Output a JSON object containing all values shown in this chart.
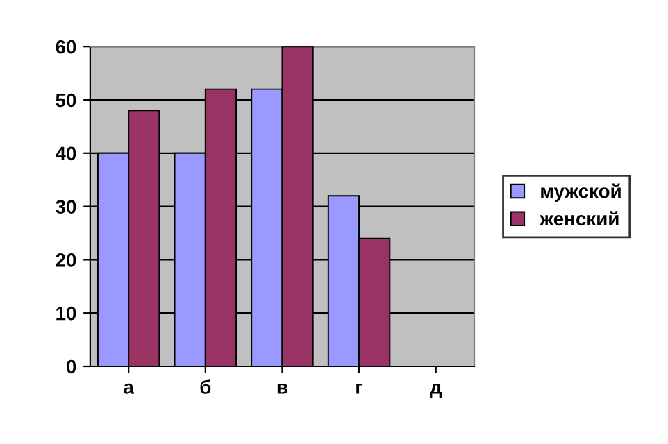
{
  "chart_data": {
    "type": "bar",
    "categories": [
      "а",
      "б",
      "в",
      "г",
      "д"
    ],
    "series": [
      {
        "name": "мужской",
        "color": "#9999ff",
        "values": [
          40,
          40,
          52,
          32,
          0
        ]
      },
      {
        "name": "женский",
        "color": "#993366",
        "values": [
          48,
          52,
          60,
          24,
          0
        ]
      }
    ],
    "ylim": [
      0,
      60
    ],
    "yticks": [
      0,
      10,
      20,
      30,
      40,
      50,
      60
    ],
    "grid": "y",
    "legend": "right"
  }
}
